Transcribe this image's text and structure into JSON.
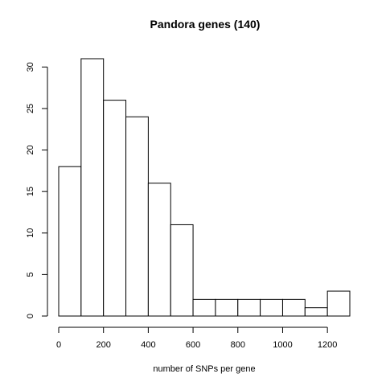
{
  "chart_data": {
    "type": "bar",
    "title": "Pandora genes (140)",
    "xlabel": "number of SNPs per gene",
    "ylabel": "",
    "bins": [
      {
        "start": 0,
        "end": 100,
        "count": 18
      },
      {
        "start": 100,
        "end": 200,
        "count": 31
      },
      {
        "start": 200,
        "end": 300,
        "count": 26
      },
      {
        "start": 300,
        "end": 400,
        "count": 24
      },
      {
        "start": 400,
        "end": 500,
        "count": 16
      },
      {
        "start": 500,
        "end": 600,
        "count": 11
      },
      {
        "start": 600,
        "end": 700,
        "count": 2
      },
      {
        "start": 700,
        "end": 800,
        "count": 2
      },
      {
        "start": 800,
        "end": 900,
        "count": 2
      },
      {
        "start": 900,
        "end": 1000,
        "count": 2
      },
      {
        "start": 1000,
        "end": 1100,
        "count": 2
      },
      {
        "start": 1100,
        "end": 1200,
        "count": 1
      },
      {
        "start": 1200,
        "end": 1300,
        "count": 3
      }
    ],
    "xlim": [
      0,
      1300
    ],
    "ylim": [
      0,
      31
    ],
    "xticks": [
      0,
      200,
      400,
      600,
      800,
      1000,
      1200
    ],
    "yticks": [
      0,
      5,
      10,
      15,
      20,
      25,
      30
    ],
    "grid": false,
    "legend": "none"
  }
}
